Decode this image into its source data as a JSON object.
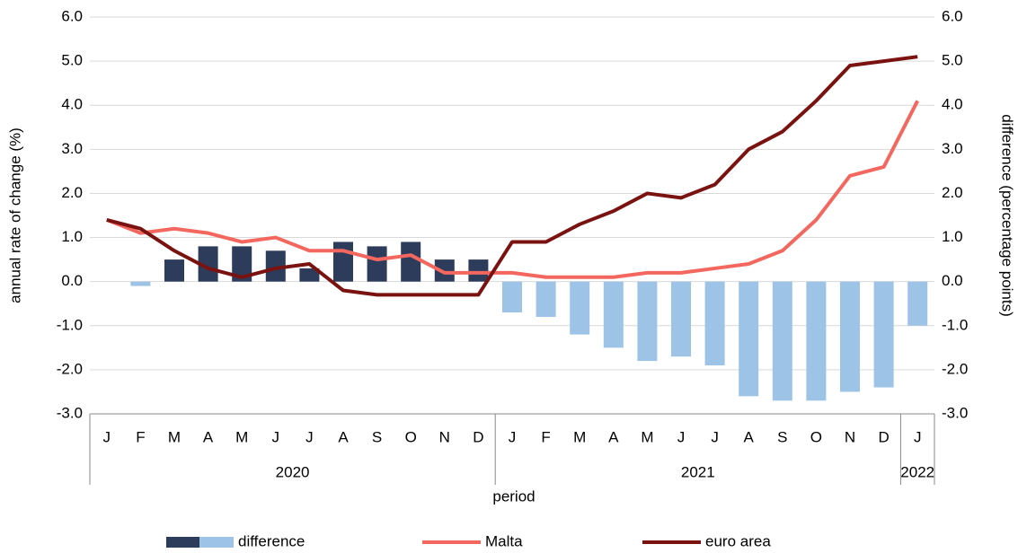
{
  "chart_data": {
    "type": "bar_line",
    "categories": [
      "J",
      "F",
      "M",
      "A",
      "M",
      "J",
      "J",
      "A",
      "S",
      "O",
      "N",
      "D",
      "J",
      "F",
      "M",
      "A",
      "M",
      "J",
      "J",
      "A",
      "S",
      "O",
      "N",
      "D",
      "J"
    ],
    "groups": [
      {
        "label": "2020",
        "count": 12
      },
      {
        "label": "2021",
        "count": 12
      },
      {
        "label": "2022",
        "count": 1
      }
    ],
    "x_label": "period",
    "y_label": "annual rate of change (%)",
    "y2_label": "difference (percentage points)",
    "ylim": [
      -3,
      6
    ],
    "y2lim": [
      -3,
      6
    ],
    "yticks": [
      {
        "value": -3,
        "label": "-3.0"
      },
      {
        "value": -2,
        "label": "-2.0"
      },
      {
        "value": -1,
        "label": "-1.0"
      },
      {
        "value": 0,
        "label": "0.0"
      },
      {
        "value": 1,
        "label": "1.0"
      },
      {
        "value": 2,
        "label": "2.0"
      },
      {
        "value": 3,
        "label": "3.0"
      },
      {
        "value": 4,
        "label": "4.0"
      },
      {
        "value": 5,
        "label": "5.0"
      },
      {
        "value": 6,
        "label": "6.0"
      }
    ],
    "y2ticks": [
      {
        "value": -3,
        "label": "-3.0"
      },
      {
        "value": -2,
        "label": "-2.0"
      },
      {
        "value": -1,
        "label": "-1.0"
      },
      {
        "value": 0,
        "label": "0.0"
      },
      {
        "value": 1,
        "label": "1.0"
      },
      {
        "value": 2,
        "label": "2.0"
      },
      {
        "value": 3,
        "label": "3.0"
      },
      {
        "value": 4,
        "label": "4.0"
      },
      {
        "value": 5,
        "label": "5.0"
      },
      {
        "value": 6,
        "label": "6.0"
      }
    ],
    "grid": true,
    "legend": "bottom",
    "series": [
      {
        "name": "difference",
        "type": "bar",
        "axis": "y2",
        "color": "#2e3c5c",
        "negative_color": "#9dc3e6",
        "values": [
          0,
          -0.1,
          0.5,
          0.8,
          0.8,
          0.7,
          0.3,
          0.9,
          0.8,
          0.9,
          0.5,
          0.5,
          -0.7,
          -0.8,
          -1.2,
          -1.5,
          -1.8,
          -1.7,
          -1.9,
          -2.6,
          -2.7,
          -2.7,
          -2.5,
          -2.4,
          -1.0
        ]
      },
      {
        "name": "Malta",
        "type": "line",
        "color": "#f4675f",
        "values": [
          1.4,
          1.1,
          1.2,
          1.1,
          0.9,
          1.0,
          0.7,
          0.7,
          0.5,
          0.6,
          0.2,
          0.2,
          0.2,
          0.1,
          0.1,
          0.1,
          0.2,
          0.2,
          0.3,
          0.4,
          0.7,
          1.4,
          2.4,
          2.6,
          4.1
        ]
      },
      {
        "name": "euro area",
        "type": "line",
        "color": "#7a1310",
        "values": [
          1.4,
          1.2,
          0.7,
          0.3,
          0.1,
          0.3,
          0.4,
          -0.2,
          -0.3,
          -0.3,
          -0.3,
          -0.3,
          0.9,
          0.9,
          1.3,
          1.6,
          2.0,
          1.9,
          2.2,
          3.0,
          3.4,
          4.1,
          4.9,
          5.0,
          5.1
        ]
      }
    ]
  }
}
